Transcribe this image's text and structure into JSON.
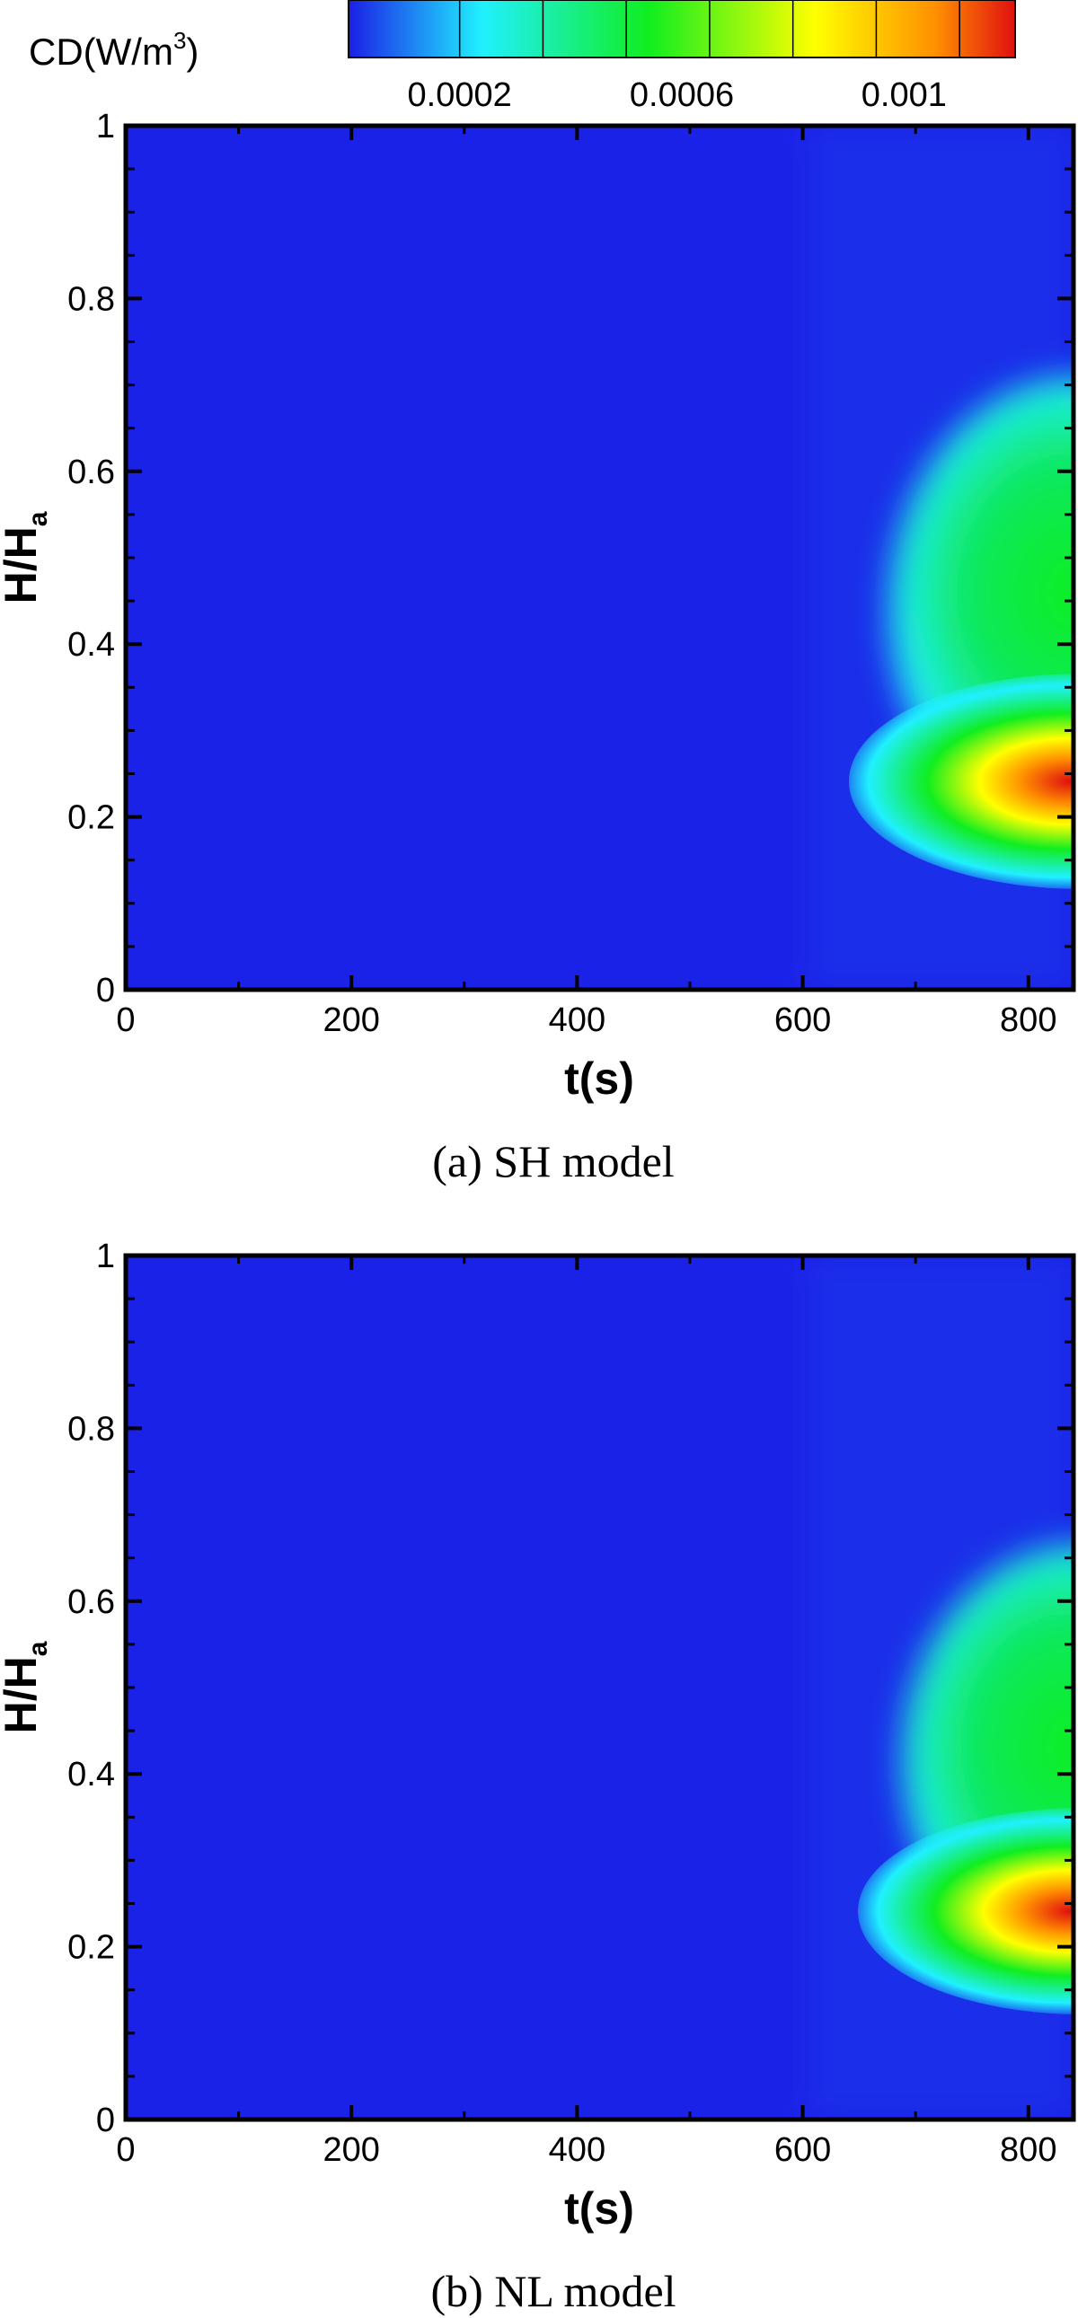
{
  "colorbar": {
    "title": "CD(W/m",
    "title_sup": "3",
    "title_close": ")",
    "range": [
      0,
      0.0012
    ],
    "ticks": [
      {
        "value": 0.0002,
        "label": "0.0002"
      },
      {
        "value": 0.0006,
        "label": "0.0006"
      },
      {
        "value": 0.001,
        "label": "0.001"
      }
    ],
    "stops": [
      "#1b1fe6",
      "#20f0ff",
      "#10ee20",
      "#ffff00",
      "#ff9000",
      "#e01010"
    ]
  },
  "chart_data": [
    {
      "type": "heatmap",
      "caption": "(a) SH model",
      "xlabel": "t(s)",
      "ylabel_main": "H/H",
      "ylabel_sub": "a",
      "xlim": [
        0,
        840
      ],
      "ylim": [
        0,
        1
      ],
      "xticks": [
        "0",
        "200",
        "400",
        "600",
        "800"
      ],
      "yticks": [
        "0",
        "0.2",
        "0.4",
        "0.6",
        "0.8",
        "1"
      ],
      "background_value": 5e-05,
      "features": [
        {
          "t_peak": 820,
          "h_peak": 0.24,
          "value": 0.0012
        },
        {
          "t_start": 690,
          "h_low": 0.16,
          "h_high": 0.56,
          "value": 0.0005
        }
      ]
    },
    {
      "type": "heatmap",
      "caption": "(b) NL model",
      "xlabel": "t(s)",
      "ylabel_main": "H/H",
      "ylabel_sub": "a",
      "xlim": [
        0,
        840
      ],
      "ylim": [
        0,
        1
      ],
      "xticks": [
        "0",
        "200",
        "400",
        "600",
        "800"
      ],
      "yticks": [
        "0",
        "0.2",
        "0.4",
        "0.6",
        "0.8",
        "1"
      ],
      "background_value": 5e-05,
      "features": [
        {
          "t_peak": 820,
          "h_peak": 0.24,
          "value": 0.0011
        },
        {
          "t_start": 680,
          "h_low": 0.16,
          "h_high": 0.53,
          "value": 0.0005
        }
      ]
    }
  ]
}
